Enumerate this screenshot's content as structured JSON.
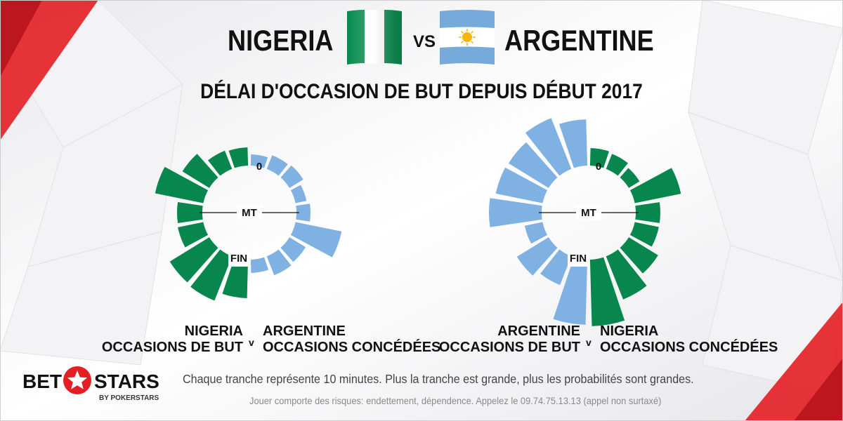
{
  "header": {
    "team_left": "NIGERIA",
    "vs": "VS",
    "team_right": "ARGENTINE",
    "subtitle": "DÉLAI D'OCCASION DE BUT DEPUIS DÉBUT 2017"
  },
  "colors": {
    "green": "#07874d",
    "blue": "#7fb1e3",
    "accent_red": "#e31e24"
  },
  "chart_data": [
    {
      "type": "polar-bar",
      "slice_minutes": 10,
      "labels": {
        "start": "0",
        "half": "MT",
        "end": "FIN"
      },
      "left_series": {
        "name": "NIGERIA OCCASIONS DE BUT",
        "color": "#07874d",
        "values": [
          26,
          28,
          45,
          70,
          36,
          37,
          66,
          68,
          55
        ]
      },
      "right_series": {
        "name": "ARGENTINE OCCASIONS CONCÉDÉES",
        "color": "#7fb1e3",
        "values": [
          16,
          21,
          23,
          16,
          20,
          67,
          27,
          29,
          19
        ]
      },
      "unit": "relative probability (arbitrary scale)"
    },
    {
      "type": "polar-bar",
      "slice_minutes": 10,
      "labels": {
        "start": "0",
        "half": "MT",
        "end": "FIN"
      },
      "left_series": {
        "name": "ARGENTINE OCCASIONS DE BUT",
        "color": "#7fb1e3",
        "values": [
          66,
          78,
          67,
          68,
          75,
          26,
          53,
          44,
          93
        ]
      },
      "right_series": {
        "name": "NIGERIA OCCASIONS CONCÉDÉES",
        "color": "#07874d",
        "values": [
          25,
          23,
          18,
          67,
          35,
          35,
          49,
          66,
          95
        ]
      },
      "unit": "relative probability (arbitrary scale)"
    }
  ],
  "captions": {
    "left_chart": {
      "team_a": "NIGERIA",
      "line_a": "OCCASIONS DE BUT",
      "v": "v",
      "team_b": "ARGENTINE",
      "line_b": "OCCASIONS CONCÉDÉES"
    },
    "right_chart": {
      "team_a": "ARGENTINE",
      "line_a": "OCCASIONS DE BUT",
      "v": "v",
      "team_b": "NIGERIA",
      "line_b": "OCCASIONS CONCÉDÉES"
    }
  },
  "footer": {
    "note": "Chaque tranche représente 10 minutes. Plus la tranche est grande, plus les probabilités sont grandes.",
    "disclaimer": "Jouer comporte des risques: endettement, dépendence. Appelez le 09.74.75.13.13 (appel non surtaxé)"
  },
  "logo": {
    "word_left": "BET",
    "word_right": "STARS",
    "sub": "BY POKERSTARS",
    "icon": "star-icon"
  }
}
